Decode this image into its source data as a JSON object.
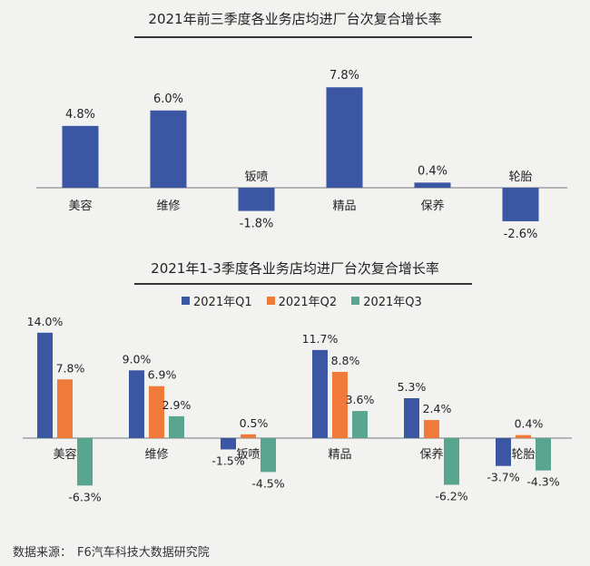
{
  "colors": {
    "q1": "#3b57a4",
    "q2": "#f07a3a",
    "q3": "#5aa58f",
    "bar": "#3b57a4",
    "axis": "#777777"
  },
  "chart_data": [
    {
      "type": "bar",
      "title": "2021年前三季度各业务店均进厂台次复合增长率",
      "categories": [
        "美容",
        "维修",
        "钣喷",
        "精品",
        "保养",
        "轮胎"
      ],
      "values": [
        4.8,
        6.0,
        -1.8,
        7.8,
        0.4,
        -2.6
      ],
      "value_labels": [
        "4.8%",
        "6.0%",
        "-1.8%",
        "7.8%",
        "0.4%",
        "-2.6%"
      ],
      "ylim": [
        -3,
        8.5
      ],
      "grid": false
    },
    {
      "type": "bar",
      "title": "2021年1-3季度各业务店均进厂台次复合增长率",
      "categories": [
        "美容",
        "维修",
        "钣喷",
        "精品",
        "保养",
        "轮胎"
      ],
      "legend_position": "top",
      "series": [
        {
          "name": "2021年Q1",
          "values": [
            14.0,
            9.0,
            -1.5,
            11.7,
            5.3,
            -3.7
          ],
          "labels": [
            "14.0%",
            "9.0%",
            "-1.5%",
            "11.7%",
            "5.3%",
            "-3.7%"
          ]
        },
        {
          "name": "2021年Q2",
          "values": [
            7.8,
            6.9,
            0.5,
            8.8,
            2.4,
            0.4
          ],
          "labels": [
            "7.8%",
            "6.9%",
            "0.5%",
            "8.8%",
            "2.4%",
            "0.4%"
          ]
        },
        {
          "name": "2021年Q3",
          "values": [
            -6.3,
            2.9,
            -4.5,
            3.6,
            -6.2,
            -4.3
          ],
          "labels": [
            "-6.3%",
            "2.9%",
            "-4.5%",
            "3.6%",
            "-6.2%",
            "-4.3%"
          ]
        }
      ],
      "ylim": [
        -7.5,
        15
      ],
      "grid": false
    }
  ],
  "source": {
    "label": "数据来源：",
    "value": "F6汽车科技大数据研究院"
  }
}
